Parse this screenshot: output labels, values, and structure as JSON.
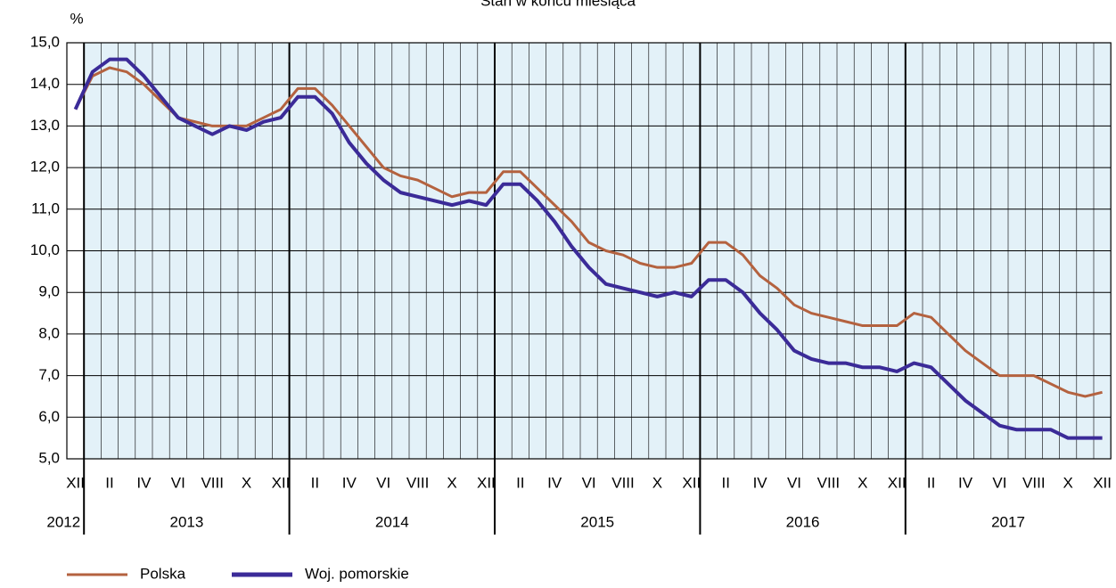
{
  "chart_data": {
    "type": "line",
    "title": "Stan w końcu miesiąca",
    "y_label": "%",
    "categories": [
      "XII",
      null,
      "II",
      null,
      "IV",
      null,
      "VI",
      null,
      "VIII",
      null,
      "X",
      null,
      "XII",
      null,
      "II",
      null,
      "IV",
      null,
      "VI",
      null,
      "VIII",
      null,
      "X",
      null,
      "XII",
      null,
      "II",
      null,
      "IV",
      null,
      "VI",
      null,
      "VIII",
      null,
      "X",
      null,
      "XII",
      null,
      "II",
      null,
      "IV",
      null,
      "VI",
      null,
      "VIII",
      null,
      "X",
      null,
      "XII",
      null,
      "II",
      null,
      "IV",
      null,
      "VI",
      null,
      "VIII",
      null,
      "X",
      null,
      "XII"
    ],
    "years": [
      "2012",
      "2013",
      "2014",
      "2015",
      "2016",
      "2017"
    ],
    "series": [
      {
        "name": "Polska",
        "color": "#b4623f",
        "values": [
          13.4,
          14.2,
          14.4,
          14.3,
          14.0,
          13.6,
          13.2,
          13.1,
          13.0,
          13.0,
          13.0,
          13.2,
          13.4,
          13.9,
          13.9,
          13.5,
          13.0,
          12.5,
          12.0,
          11.8,
          11.7,
          11.5,
          11.3,
          11.4,
          11.4,
          11.9,
          11.9,
          11.5,
          11.1,
          10.7,
          10.2,
          10.0,
          9.9,
          9.7,
          9.6,
          9.6,
          9.7,
          10.2,
          10.2,
          9.9,
          9.4,
          9.1,
          8.7,
          8.5,
          8.4,
          8.3,
          8.2,
          8.2,
          8.2,
          8.5,
          8.4,
          8.0,
          7.6,
          7.3,
          7.0,
          7.0,
          7.0,
          6.8,
          6.6,
          6.5,
          6.6
        ]
      },
      {
        "name": "Woj. pomorskie",
        "color": "#3b2b98",
        "values": [
          13.4,
          14.3,
          14.6,
          14.6,
          14.2,
          13.7,
          13.2,
          13.0,
          12.8,
          13.0,
          12.9,
          13.1,
          13.2,
          13.7,
          13.7,
          13.3,
          12.6,
          12.1,
          11.7,
          11.4,
          11.3,
          11.2,
          11.1,
          11.2,
          11.1,
          11.6,
          11.6,
          11.2,
          10.7,
          10.1,
          9.6,
          9.2,
          9.1,
          9.0,
          8.9,
          9.0,
          8.9,
          9.3,
          9.3,
          9.0,
          8.5,
          8.1,
          7.6,
          7.4,
          7.3,
          7.3,
          7.2,
          7.2,
          7.1,
          7.3,
          7.2,
          6.8,
          6.4,
          6.1,
          5.8,
          5.7,
          5.7,
          5.7,
          5.5,
          5.5,
          5.5
        ]
      }
    ],
    "ylim": [
      5,
      15
    ],
    "yticks": [
      {
        "value": 5,
        "label": "5,0"
      },
      {
        "value": 6,
        "label": "6,0"
      },
      {
        "value": 7,
        "label": "7,0"
      },
      {
        "value": 8,
        "label": "8,0"
      },
      {
        "value": 9,
        "label": "9,0"
      },
      {
        "value": 10,
        "label": "10,0"
      },
      {
        "value": 11,
        "label": "11,0"
      },
      {
        "value": 12,
        "label": "12,0"
      },
      {
        "value": 13,
        "label": "13,0"
      },
      {
        "value": 14,
        "label": "14,0"
      },
      {
        "value": 15,
        "label": "15,0"
      }
    ],
    "grid": true,
    "legend": "bottom"
  }
}
